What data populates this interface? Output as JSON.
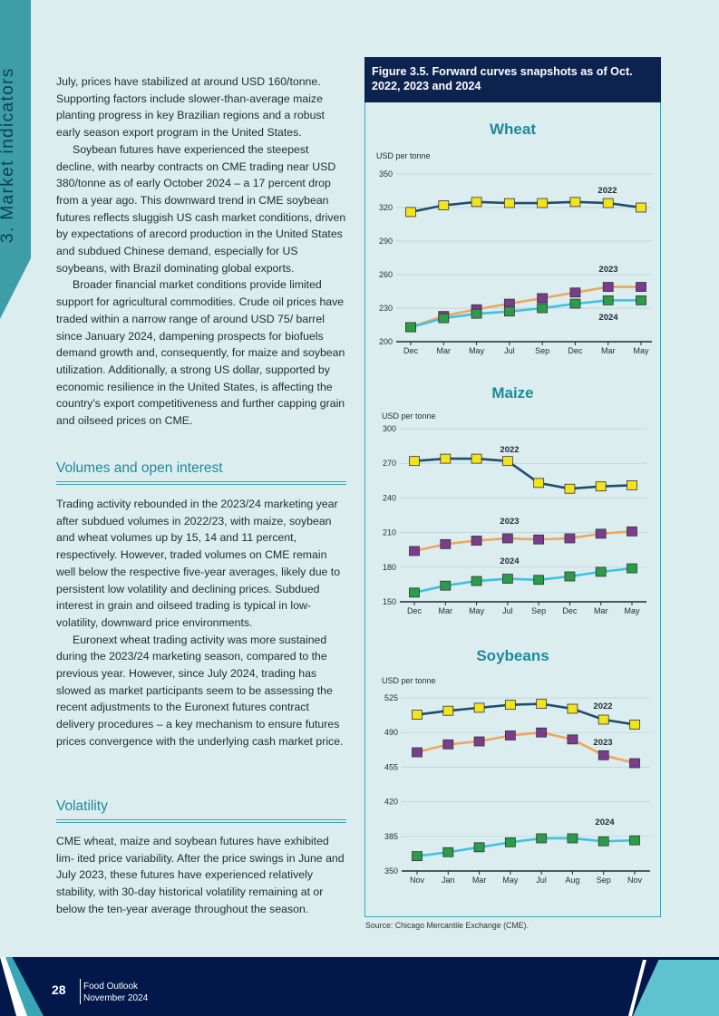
{
  "section_tab": "3. Market indicators",
  "body": {
    "p1": [
      "July, prices have stabilized at around USD 160/tonne. Supporting factors include slower-than-average maize planting progress in key Brazilian regions and a robust early season export program in the United States.",
      "Soybean futures have experienced the steepest decline, with nearby contracts on CME trading near USD 380/tonne as of early October 2024 – a 17 percent drop from a year ago. This downward trend in CME soybean futures reflects sluggish US cash market conditions, driven by  expectations of arecord production in the United States and subdued Chinese demand, especially for US soybeans, with Brazil dominating global exports.",
      "Broader financial market conditions provide limited support for agricultural commodities. Crude oil prices have traded within a narrow range of around USD 75/ barrel since January 2024, dampening prospects for biofuels demand growth and, consequently, for maize and soybean utilization. Additionally, a strong US dollar, supported by economic resilience in the United States, is affecting the country's export competitiveness and further capping grain and oilseed prices on CME."
    ],
    "h_volumes": "Volumes and open interest",
    "p2": [
      "Trading activity rebounded in the 2023/24 marketing year after subdued volumes in 2022/23, with maize, soybean and wheat volumes up by 15, 14 and 11 percent, respectively. However, traded volumes on CME remain well below the respective five-year averages, likely due to persistent low volatility and declining prices. Subdued interest in grain and oilseed trading is typical in low-volatility, downward price environments.",
      "Euronext wheat trading activity was more sustained during the 2023/24 marketing season, compared to the previous year. However, since July 2024, trading has slowed as market participants seem to be assessing the recent adjustments to the Euronext futures contract delivery procedures – a key mechanism to ensure futures prices convergence with the underlying cash market price."
    ],
    "h_volatility": "Volatility",
    "p3": [
      "CME wheat, maize and soybean futures have exhibited lim- ited price variability. After the price swings in June and July 2023, these futures have experienced relatively stability, with 30-day historical volatility remaining at or below the ten-year average throughout the season."
    ]
  },
  "figure": {
    "title": "Figure 3.5.  Forward curves snapshots as of Oct. 2022, 2023 and 2024",
    "source": "Source: Chicago Mercantile Exchange (CME)."
  },
  "colors": {
    "line_2022": "#1d4e6b",
    "marker_2022": "#f2e31d",
    "line_2023": "#f0a55e",
    "marker_2023": "#7a3d8e",
    "line_2024": "#3cc2e2",
    "marker_2024": "#2d9c48"
  },
  "chart_data": [
    {
      "type": "line",
      "title": "Wheat",
      "ylabel": "USD per tonne",
      "ylim": [
        200,
        350
      ],
      "yticks": [
        200,
        230,
        260,
        290,
        320,
        350
      ],
      "categories": [
        "Dec",
        "Mar",
        "May",
        "Jul",
        "Sep",
        "Dec",
        "Mar",
        "May"
      ],
      "series": [
        {
          "name": "2022",
          "values": [
            316,
            322,
            325,
            324,
            324,
            325,
            324,
            320
          ]
        },
        {
          "name": "2023",
          "values": [
            213,
            223,
            229,
            234,
            239,
            244,
            249,
            249
          ]
        },
        {
          "name": "2024",
          "values": [
            213,
            221,
            225,
            227,
            230,
            234,
            237,
            237
          ]
        }
      ]
    },
    {
      "type": "line",
      "title": "Maize",
      "ylabel": "USD per tonne",
      "ylim": [
        150,
        300
      ],
      "yticks": [
        150,
        180,
        210,
        240,
        270,
        300
      ],
      "categories": [
        "Dec",
        "Mar",
        "May",
        "Jul",
        "Sep",
        "Dec",
        "Mar",
        "May"
      ],
      "series": [
        {
          "name": "2022",
          "values": [
            272,
            274,
            274,
            272,
            253,
            248,
            250,
            251
          ]
        },
        {
          "name": "2023",
          "values": [
            194,
            200,
            203,
            205,
            204,
            205,
            209,
            211
          ]
        },
        {
          "name": "2024",
          "values": [
            158,
            164,
            168,
            170,
            169,
            172,
            176,
            179
          ]
        }
      ]
    },
    {
      "type": "line",
      "title": "Soybeans",
      "ylabel": "USD per tonne",
      "ylim": [
        350,
        525
      ],
      "yticks": [
        350,
        385,
        420,
        455,
        490,
        525
      ],
      "categories": [
        "Nov",
        "Jan",
        "Mar",
        "May",
        "Jul",
        "Aug",
        "Sep",
        "Nov"
      ],
      "series": [
        {
          "name": "2022",
          "values": [
            508,
            512,
            515,
            518,
            519,
            514,
            503,
            498
          ]
        },
        {
          "name": "2023",
          "values": [
            470,
            478,
            481,
            487,
            490,
            483,
            467,
            459
          ]
        },
        {
          "name": "2024",
          "values": [
            365,
            369,
            374,
            379,
            383,
            383,
            380,
            381
          ]
        }
      ]
    }
  ],
  "footer": {
    "page": "28",
    "pub": "Food Outlook",
    "date": "November 2024"
  }
}
